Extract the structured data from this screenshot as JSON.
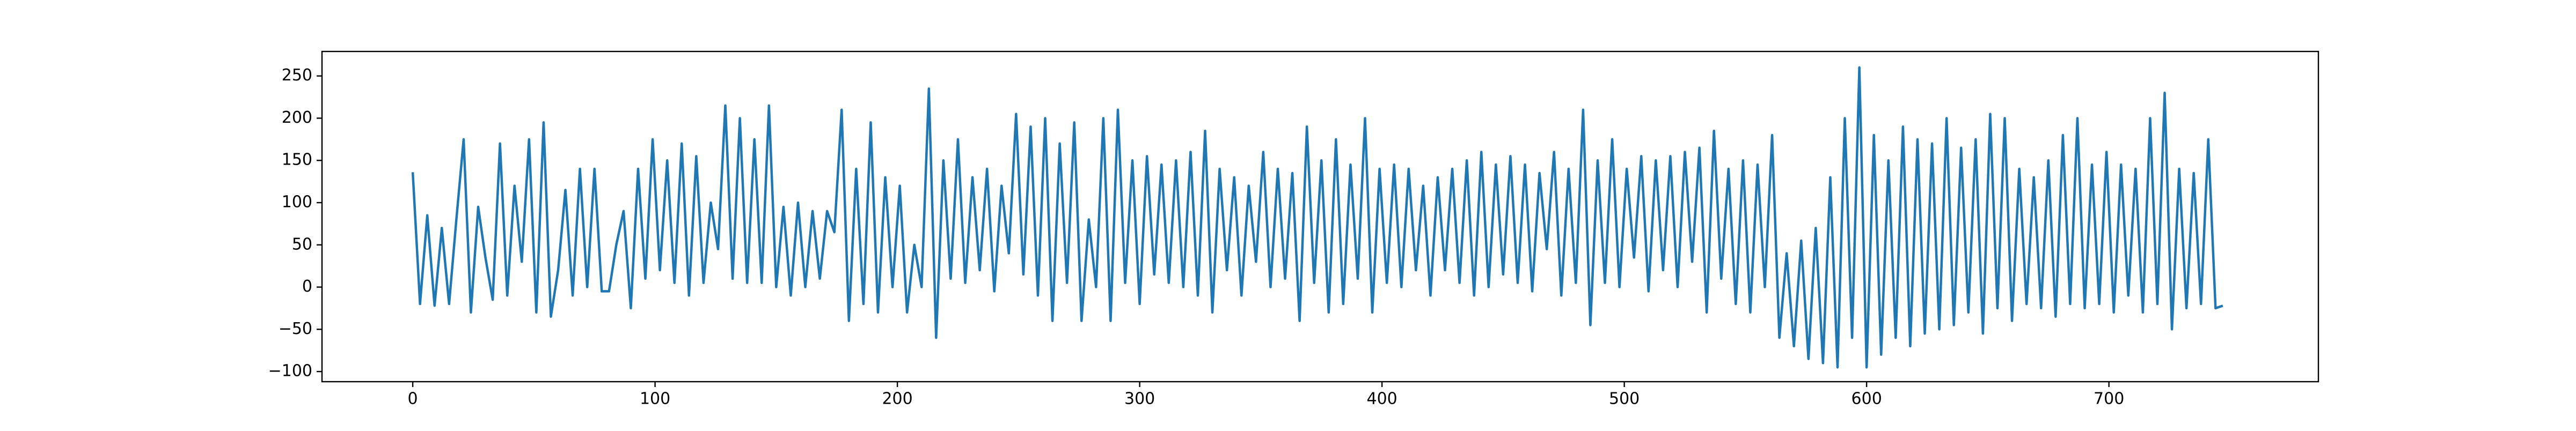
{
  "chart_data": {
    "type": "line",
    "x": [
      0,
      3,
      6,
      9,
      12,
      15,
      18,
      21,
      24,
      27,
      30,
      33,
      36,
      39,
      42,
      45,
      48,
      51,
      54,
      57,
      60,
      63,
      66,
      69,
      72,
      75,
      78,
      81,
      84,
      87,
      90,
      93,
      96,
      99,
      102,
      105,
      108,
      111,
      114,
      117,
      120,
      123,
      126,
      129,
      132,
      135,
      138,
      141,
      144,
      147,
      150,
      153,
      156,
      159,
      162,
      165,
      168,
      171,
      174,
      177,
      180,
      183,
      186,
      189,
      192,
      195,
      198,
      201,
      204,
      207,
      210,
      213,
      216,
      219,
      222,
      225,
      228,
      231,
      234,
      237,
      240,
      243,
      246,
      249,
      252,
      255,
      258,
      261,
      264,
      267,
      270,
      273,
      276,
      279,
      282,
      285,
      288,
      291,
      294,
      297,
      300,
      303,
      306,
      309,
      312,
      315,
      318,
      321,
      324,
      327,
      330,
      333,
      336,
      339,
      342,
      345,
      348,
      351,
      354,
      357,
      360,
      363,
      366,
      369,
      372,
      375,
      378,
      381,
      384,
      387,
      390,
      393,
      396,
      399,
      402,
      405,
      408,
      411,
      414,
      417,
      420,
      423,
      426,
      429,
      432,
      435,
      438,
      441,
      444,
      447,
      450,
      453,
      456,
      459,
      462,
      465,
      468,
      471,
      474,
      477,
      480,
      483,
      486,
      489,
      492,
      495,
      498,
      501,
      504,
      507,
      510,
      513,
      516,
      519,
      522,
      525,
      528,
      531,
      534,
      537,
      540,
      543,
      546,
      549,
      552,
      555,
      558,
      561,
      564,
      567,
      570,
      573,
      576,
      579,
      582,
      585,
      588,
      591,
      594,
      597,
      600,
      603,
      606,
      609,
      612,
      615,
      618,
      621,
      624,
      627,
      630,
      633,
      636,
      639,
      642,
      645,
      648,
      651,
      654,
      657,
      660,
      663,
      666,
      669,
      672,
      675,
      678,
      681,
      684,
      687,
      690,
      693,
      696,
      699,
      702,
      705,
      708,
      711,
      714,
      717,
      720,
      723,
      726,
      729,
      732,
      735,
      738,
      741,
      744,
      747
    ],
    "series": [
      {
        "color": "#1f77b4",
        "values": [
          136,
          -20,
          85,
          -22,
          70,
          -20,
          80,
          175,
          -30,
          95,
          35,
          -15,
          170,
          -10,
          120,
          30,
          175,
          -30,
          195,
          -35,
          20,
          115,
          -10,
          140,
          0,
          140,
          -5,
          -5,
          50,
          90,
          -25,
          140,
          10,
          175,
          20,
          150,
          5,
          170,
          -10,
          155,
          5,
          100,
          45,
          215,
          10,
          200,
          5,
          175,
          5,
          215,
          0,
          95,
          -10,
          100,
          0,
          90,
          10,
          90,
          65,
          210,
          -40,
          140,
          -20,
          195,
          -30,
          130,
          0,
          120,
          -30,
          50,
          0,
          235,
          -60,
          150,
          10,
          175,
          5,
          130,
          20,
          140,
          -5,
          120,
          40,
          205,
          15,
          190,
          -10,
          200,
          -40,
          170,
          5,
          195,
          -40,
          80,
          0,
          200,
          -40,
          210,
          5,
          150,
          -20,
          155,
          15,
          145,
          5,
          150,
          0,
          160,
          -10,
          185,
          -30,
          140,
          20,
          130,
          -10,
          120,
          30,
          160,
          0,
          140,
          10,
          135,
          -40,
          190,
          5,
          150,
          -30,
          175,
          -20,
          145,
          10,
          200,
          -30,
          140,
          5,
          145,
          0,
          140,
          20,
          120,
          -10,
          130,
          20,
          140,
          5,
          150,
          -10,
          160,
          0,
          145,
          15,
          155,
          5,
          145,
          -5,
          135,
          45,
          160,
          -10,
          140,
          5,
          210,
          -45,
          150,
          5,
          175,
          0,
          140,
          35,
          155,
          -5,
          150,
          20,
          155,
          0,
          160,
          30,
          165,
          -30,
          185,
          10,
          140,
          -20,
          150,
          -30,
          145,
          0,
          180,
          -60,
          40,
          -70,
          55,
          -85,
          70,
          -90,
          130,
          -95,
          200,
          -60,
          260,
          -95,
          180,
          -80,
          150,
          -60,
          190,
          -70,
          175,
          -55,
          170,
          -50,
          200,
          -45,
          165,
          -30,
          175,
          -55,
          205,
          -25,
          200,
          -40,
          140,
          -20,
          130,
          -25,
          150,
          -35,
          180,
          -20,
          200,
          -25,
          145,
          -20,
          160,
          -30,
          145,
          -10,
          140,
          -30,
          200,
          -20,
          230,
          -50,
          140,
          -25,
          135,
          -20,
          175,
          -25,
          -22
        ]
      }
    ],
    "xlim": [
      -37.45,
      786.45
    ],
    "ylim": [
      -112,
      279
    ],
    "xticks": [
      0,
      100,
      200,
      300,
      400,
      500,
      600,
      700
    ],
    "yticks": [
      {
        "value": -100,
        "label": "−100"
      },
      {
        "value": -50,
        "label": "−50"
      },
      0,
      50,
      100,
      150,
      200,
      250
    ]
  }
}
